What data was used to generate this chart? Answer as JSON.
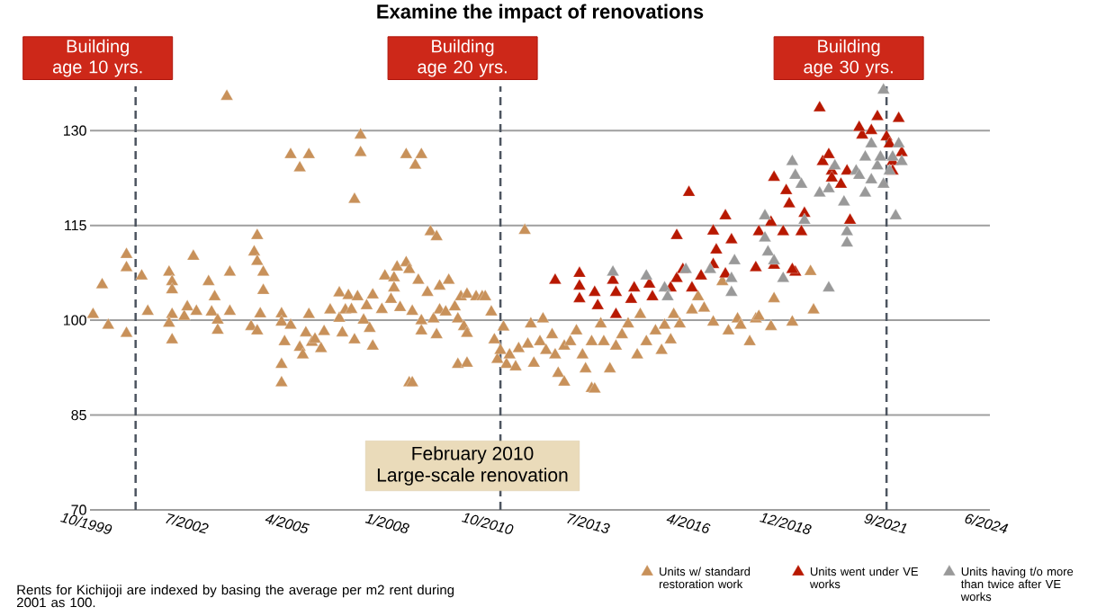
{
  "chart_data": {
    "type": "scatter",
    "title": "Examine the impact of renovations",
    "xlim": [
      "1999-10",
      "2024-06"
    ],
    "xticks": [
      {
        "value": "1999-10",
        "label": "10/1999"
      },
      {
        "value": "2002-07",
        "label": "7/2002"
      },
      {
        "value": "2005-04",
        "label": "4/2005"
      },
      {
        "value": "2008-01",
        "label": "1/2008"
      },
      {
        "value": "2010-10",
        "label": "10/2010"
      },
      {
        "value": "2013-07",
        "label": "7/2013"
      },
      {
        "value": "2016-04",
        "label": "4/2016"
      },
      {
        "value": "2018-12",
        "label": "12/2018"
      },
      {
        "value": "2021-09",
        "label": "9/2021"
      },
      {
        "value": "2024-06",
        "label": "6/2024"
      }
    ],
    "ylim": [
      70,
      137
    ],
    "yticks": [
      70,
      85,
      100,
      115,
      130
    ],
    "grid": "y",
    "marker": "triangle",
    "legend": "bottom",
    "series": [
      {
        "name": "Units w/ standard restoration work",
        "color": "#c8915a",
        "x": [
          "1999-11",
          "2000-02",
          "2000-04",
          "2000-10",
          "2000-10",
          "2000-10",
          "2001-03",
          "2001-05",
          "2001-12",
          "2002-01",
          "2002-01",
          "2002-01",
          "2001-12",
          "2002-01",
          "2002-05",
          "2002-06",
          "2002-08",
          "2002-09",
          "2003-01",
          "2003-02",
          "2003-03",
          "2003-04",
          "2003-04",
          "2003-07",
          "2003-08",
          "2003-08",
          "2004-03",
          "2004-04",
          "2004-05",
          "2004-05",
          "2004-06",
          "2004-07",
          "2004-05",
          "2004-07",
          "2005-01",
          "2005-01",
          "2005-02",
          "2005-01",
          "2005-01",
          "2005-04",
          "2005-04",
          "2005-07",
          "2005-10",
          "2005-07",
          "2005-08",
          "2005-09",
          "2005-10",
          "2005-11",
          "2005-12",
          "2006-02",
          "2006-03",
          "2006-05",
          "2006-08",
          "2006-08",
          "2006-09",
          "2006-10",
          "2007-01",
          "2007-03",
          "2007-03",
          "2006-11",
          "2006-12",
          "2007-01",
          "2007-02",
          "2007-04",
          "2007-05",
          "2007-06",
          "2007-07",
          "2007-07",
          "2007-10",
          "2007-11",
          "2008-01",
          "2008-02",
          "2008-02",
          "2008-03",
          "2008-04",
          "2008-06",
          "2008-07",
          "2008-07",
          "2008-08",
          "2008-06",
          "2008-09",
          "2008-11",
          "2008-08",
          "2008-10",
          "2008-11",
          "2008-11",
          "2009-01",
          "2009-02",
          "2009-04",
          "2009-03",
          "2009-04",
          "2009-05",
          "2009-05",
          "2009-07",
          "2009-08",
          "2009-10",
          "2009-11",
          "2009-11",
          "2009-12",
          "2010-01",
          "2010-02",
          "2010-02",
          "2010-02",
          "2010-05",
          "2010-07",
          "2010-08",
          "2010-10",
          "2010-11",
          "2010-12",
          "2011-01",
          "2011-02",
          "2011-03",
          "2011-04",
          "2011-06",
          "2011-07",
          "2011-09",
          "2011-10",
          "2011-11",
          "2011-12",
          "2012-02",
          "2012-03",
          "2012-04",
          "2012-06",
          "2012-07",
          "2012-08",
          "2012-10",
          "2012-10",
          "2012-12",
          "2013-02",
          "2013-04",
          "2013-05",
          "2013-07",
          "2013-08",
          "2013-07",
          "2013-10",
          "2013-11",
          "2014-01",
          "2014-03",
          "2014-05",
          "2014-07",
          "2014-10",
          "2014-11",
          "2015-01",
          "2015-04",
          "2015-06",
          "2015-07",
          "2015-09",
          "2015-10",
          "2015-12",
          "2016-04",
          "2016-06",
          "2016-08",
          "2016-11",
          "2017-02",
          "2017-04",
          "2017-07",
          "2017-08",
          "2017-11",
          "2018-01",
          "2018-02",
          "2018-06",
          "2018-07",
          "2019-01",
          "2019-07",
          "2019-08"
        ],
        "values": [
          100.9,
          105.6,
          99.2,
          110.4,
          108.3,
          97.9,
          107,
          101.4,
          107.6,
          106.1,
          104.8,
          100.9,
          99.5,
          96.9,
          100.6,
          102.1,
          110.1,
          101.4,
          106.1,
          101.3,
          103.7,
          100,
          98.4,
          135.4,
          107.6,
          101.4,
          99,
          110.8,
          109.3,
          98.3,
          101,
          104.7,
          113.4,
          107.6,
          101,
          99.7,
          96.6,
          90.1,
          93,
          99.2,
          126.2,
          124.1,
          126.2,
          95.7,
          94.5,
          98,
          100.9,
          96.5,
          97,
          95.5,
          98.2,
          101.6,
          100.3,
          104.3,
          98,
          101.6,
          119.1,
          129.3,
          126.5,
          103.9,
          101.7,
          96.9,
          103.7,
          100,
          102.3,
          98.7,
          104,
          95.9,
          101.7,
          107,
          103.3,
          106.7,
          105.1,
          108.4,
          102,
          109.1,
          108,
          90.1,
          90.1,
          126.2,
          124.5,
          126.2,
          101.4,
          106.3,
          98.3,
          99.9,
          104.4,
          114,
          113.2,
          100.2,
          97.7,
          101.6,
          105.4,
          101.3,
          106.3,
          102.1,
          100.2,
          93,
          103.7,
          99,
          97.9,
          93.2,
          104.1,
          103.7,
          103.7,
          103.7,
          101.3,
          96.9,
          93.8,
          95.2,
          98.9,
          93,
          94.5,
          92.6,
          95.5,
          114.2,
          96.2,
          99.4,
          93.2,
          96.6,
          100.2,
          95.2,
          97.7,
          94.5,
          91.6,
          95.9,
          90.2,
          96.6,
          98.3,
          94.5,
          92.3,
          89.2,
          89.1,
          96.6,
          99.4,
          96.6,
          92.3,
          95.9,
          97.7,
          99.4,
          94.5,
          100.9,
          96.6,
          98.3,
          95.2,
          99.2,
          96.9,
          100.9,
          99.4,
          101.6,
          103.7,
          101.9,
          99.7,
          106.1,
          98.3,
          100.2,
          99.2,
          96.6,
          100.2,
          100.6,
          99,
          103.4,
          99.7,
          107.7,
          101.6
        ]
      },
      {
        "name": "Units went under VE works",
        "color": "#b81800",
        "x": [
          "2012-07",
          "2013-03",
          "2013-03",
          "2013-03",
          "2013-08",
          "2013-09",
          "2014-02",
          "2014-03",
          "2014-03",
          "2014-09",
          "2014-08",
          "2015-02",
          "2015-03",
          "2015-09",
          "2015-11",
          "2016-01",
          "2016-04",
          "2015-11",
          "2016-03",
          "2016-07",
          "2016-11",
          "2016-12",
          "2017-03",
          "2016-11",
          "2017-03",
          "2017-05",
          "2018-01",
          "2018-02",
          "2018-06",
          "2018-07",
          "2018-10",
          "2018-11",
          "2018-12",
          "2019-02",
          "2019-04",
          "2019-05",
          "2019-01",
          "2018-07",
          "2019-10",
          "2019-11",
          "2020-01",
          "2020-02",
          "2020-02",
          "2020-05",
          "2020-07",
          "2020-08",
          "2020-12",
          "2021-03",
          "2021-05",
          "2021-08",
          "2021-09",
          "2021-10",
          "2021-10",
          "2021-12",
          "2022-01",
          "2020-11"
        ],
        "values": [
          106.3,
          107.4,
          105.4,
          103.4,
          104.4,
          102.3,
          106.3,
          104.4,
          100.9,
          105.1,
          103.3,
          105.7,
          103.7,
          105.1,
          106.6,
          108,
          105.1,
          113.4,
          120.2,
          107,
          108.8,
          111.1,
          116.5,
          114.1,
          107.3,
          112.7,
          108.3,
          114,
          115.5,
          122.6,
          114,
          120.5,
          118.4,
          107.6,
          114,
          116.9,
          108,
          108.7,
          133.6,
          125.1,
          126.2,
          123.6,
          122.5,
          121.5,
          123.6,
          115.8,
          129.3,
          130,
          132.2,
          129,
          127.9,
          125.1,
          123.6,
          131.9,
          126.5,
          130.5
        ]
      },
      {
        "name": "Units having t/o more than twice after VE works",
        "color": "#999999",
        "x": [
          "2014-02",
          "2015-01",
          "2015-07",
          "2015-08",
          "2016-02",
          "2016-10",
          "2017-05",
          "2017-06",
          "2017-05",
          "2018-04",
          "2018-04",
          "2018-05",
          "2018-07",
          "2018-10",
          "2019-01",
          "2019-02",
          "2019-04",
          "2019-05",
          "2019-10",
          "2020-01",
          "2020-01",
          "2020-03",
          "2020-06",
          "2020-07",
          "2020-07",
          "2020-10",
          "2020-11",
          "2021-01",
          "2021-01",
          "2021-03",
          "2021-03",
          "2021-05",
          "2021-06",
          "2021-07",
          "2021-07",
          "2021-09",
          "2021-10",
          "2021-11",
          "2022-01",
          "2021-12"
        ],
        "values": [
          107.6,
          107,
          105.1,
          103.7,
          108,
          108,
          104.4,
          109.4,
          106.6,
          116.5,
          113,
          110.8,
          109.4,
          106.6,
          125.1,
          122.9,
          121.5,
          115.8,
          120.1,
          120.8,
          105.1,
          124.4,
          118.7,
          114,
          112.2,
          123.6,
          122.9,
          120.1,
          125.8,
          127.9,
          122.2,
          124.4,
          125.8,
          136.4,
          121.5,
          123.6,
          125.8,
          116.5,
          125.1,
          127.9
        ]
      }
    ],
    "ref_lines": [
      {
        "axis": "x",
        "value": "2001-01",
        "label": "Building age 10 yrs.",
        "color": "#4d5560",
        "line_style": "dashed"
      },
      {
        "axis": "x",
        "value": "2011-01",
        "label": "Building age 20 yrs.",
        "color": "#4d5560",
        "line_style": "dashed"
      },
      {
        "axis": "x",
        "value": "2021-08",
        "label": "Building age 30 yrs.",
        "color": "#4d5560",
        "line_style": "dashed"
      }
    ],
    "annotations": [
      "February 2010",
      "Large-scale renovation",
      "Rents for Kichijoji are indexed by basing the average per m2 rent during 2001 as 100."
    ]
  }
}
